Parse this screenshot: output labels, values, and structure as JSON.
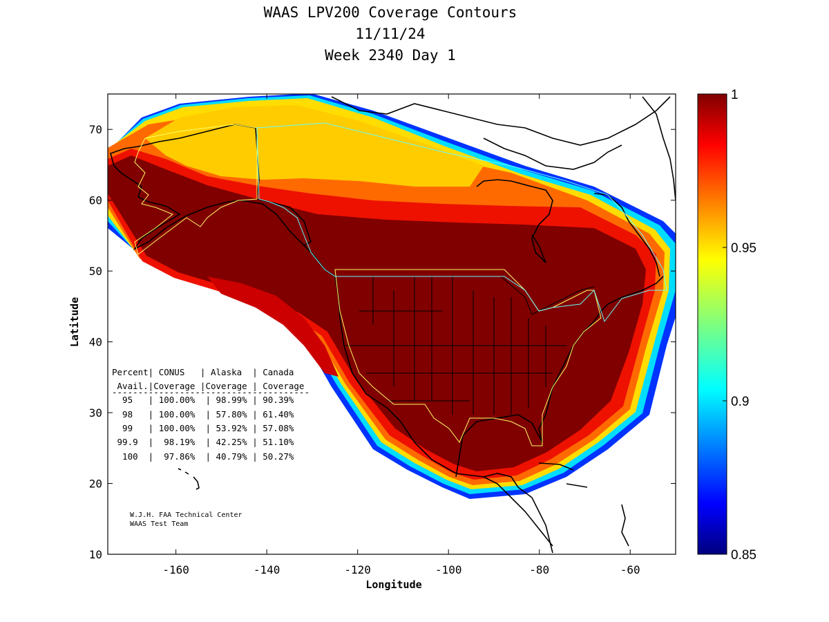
{
  "title": {
    "line1": "WAAS LPV200 Coverage Contours",
    "line2": "11/11/24",
    "line3": "Week 2340 Day 1"
  },
  "axes": {
    "xlabel": "Longitude",
    "ylabel": "Latitude",
    "xlim": [
      -175,
      -50
    ],
    "ylim": [
      10,
      75
    ],
    "xticks": [
      "-160",
      "-140",
      "-120",
      "-100",
      "-80",
      "-60"
    ],
    "xtick_values": [
      -160,
      -140,
      -120,
      -100,
      -80,
      -60
    ],
    "yticks": [
      "10",
      "20",
      "30",
      "40",
      "50",
      "60",
      "70"
    ],
    "ytick_values": [
      10,
      20,
      30,
      40,
      50,
      60,
      70
    ]
  },
  "colorbar": {
    "labels": [
      "1",
      "0.95",
      "0.9",
      "0.85"
    ],
    "values": [
      1,
      0.95,
      0.9,
      0.85
    ],
    "range": [
      0.85,
      1
    ],
    "colormap": "jet"
  },
  "table": {
    "header1": "Percent| CONUS   | Alaska  | Canada",
    "header2": " Avail.|Coverage |Coverage | Coverage",
    "rule": "--------------------------------------",
    "rows": [
      "  95   | 100.00%  | 98.99% | 90.39%",
      "  98   | 100.00%  | 57.80% | 61.40%",
      "  99   | 100.00%  | 53.92% | 57.08%",
      " 99.9  |  98.19%  | 42.25% | 51.10%",
      "  100  |  97.86%  | 40.79% | 50.27%"
    ]
  },
  "coverage_table": {
    "columns": [
      "Percent Avail.",
      "CONUS Coverage",
      "Alaska Coverage",
      "Canada Coverage"
    ],
    "rows": [
      [
        "95",
        "100.00%",
        "98.99%",
        "90.39%"
      ],
      [
        "98",
        "100.00%",
        "57.80%",
        "61.40%"
      ],
      [
        "99",
        "100.00%",
        "53.92%",
        "57.08%"
      ],
      [
        "99.9",
        "98.19%",
        "42.25%",
        "51.10%"
      ],
      [
        "100",
        "97.86%",
        "40.79%",
        "50.27%"
      ]
    ]
  },
  "credit": {
    "line1": "W.J.H. FAA Technical Center",
    "line2": "WAAS Test Team"
  },
  "colors": {
    "dark_red": "#800000",
    "red": "#e60000",
    "orange": "#ff6600",
    "yellow": "#ffcc00",
    "cyan": "#00e5ff",
    "blue": "#0040ff",
    "navy": "#000080",
    "region_outline_yellow": "#ffff66",
    "region_outline_cyan": "#66ffff"
  }
}
